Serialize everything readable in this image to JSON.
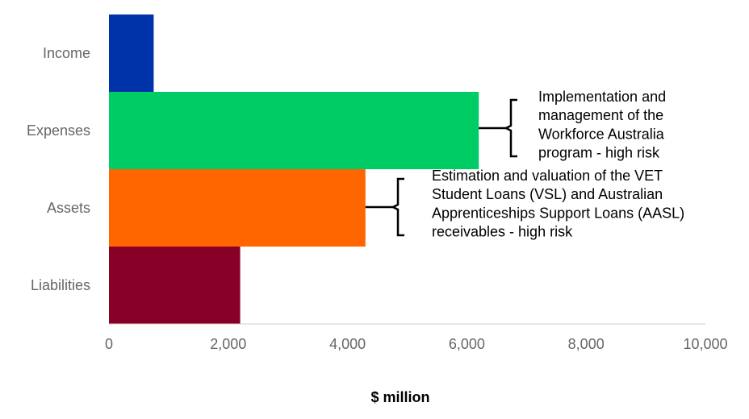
{
  "chart_data": {
    "type": "hbar",
    "categories": [
      "Income",
      "Expenses",
      "Assets",
      "Liabilities"
    ],
    "values": [
      750,
      6200,
      4300,
      2200
    ],
    "colors": [
      "#0033aa",
      "#00cc66",
      "#ff6600",
      "#880028"
    ],
    "xlim": [
      0,
      10000
    ],
    "xticks": [
      0,
      {
        "value": 2000,
        "label": "2,000"
      },
      {
        "value": 4000,
        "label": "4,000"
      },
      {
        "value": 6000,
        "label": "6,000"
      },
      {
        "value": 8000,
        "label": "8,000"
      },
      {
        "value": 10000,
        "label": "10,000"
      }
    ],
    "xlabel": "$ million",
    "grid": false,
    "annotations": [
      {
        "lines": [
          "Implementation and",
          "management of the",
          "Workforce Australia",
          "program - high risk"
        ]
      },
      {
        "lines": [
          "Estimation and valuation of the VET",
          "Student Loans (VSL) and Australian",
          "Apprenticeships Support Loans (AASL)",
          "receivables - high risk"
        ]
      }
    ]
  }
}
